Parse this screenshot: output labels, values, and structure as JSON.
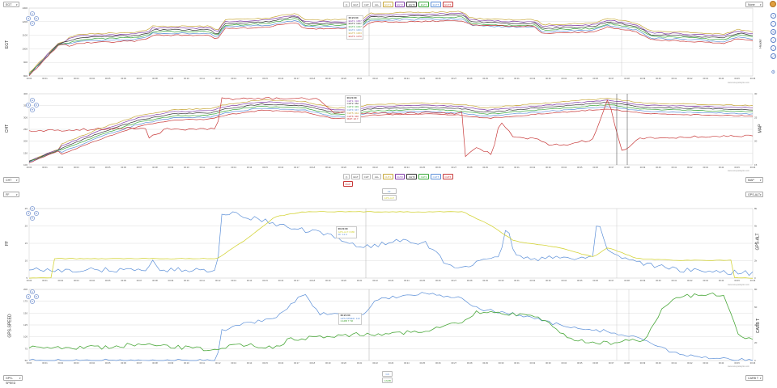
{
  "selectors": {
    "panel1_left": "EGT",
    "panel1_right": "None",
    "panel2_left": "CHT",
    "panel2_right": "MAP",
    "panel3_left": "FF",
    "panel3_right": "GPS-ALT",
    "panel4_left": "GPS-SPEED",
    "panel4_right": "CARB T"
  },
  "top_toggles": [
    "◎",
    "EGT",
    "CHT",
    "ALL",
    "EGT1",
    "EGT2",
    "EGT3",
    "EGT4",
    "EGT5",
    "EGT6"
  ],
  "mid_toggles": [
    "◎",
    "EGT",
    "CHT",
    "ALL",
    "CHT1",
    "CHT2",
    "CHT3",
    "CHT4",
    "CHT5",
    "CHT6"
  ],
  "mid_toggle_extra": "MAP",
  "ff_toggles": [
    "FF",
    "GPS-ALT"
  ],
  "bottom_toggles": [
    "GS",
    "CARB"
  ],
  "axis_labels": {
    "egt": "EGT",
    "egt_right": "Header",
    "cht": "CHT",
    "map": "MAP",
    "ff": "FF",
    "alt": "GPS-ALT",
    "gps": "GPS-SPEED",
    "carb": "CARB T"
  },
  "credit": "www.savvyanalysis.com",
  "colors": {
    "c1": "#c8a83a",
    "c2": "#7f3aa8",
    "c3": "#333333",
    "c4": "#3aa83a",
    "c5": "#5b8fd8",
    "c6": "#c83a3a",
    "ff": "#5b8fd8",
    "alt": "#d4d43a",
    "gs": "#5b8fd8",
    "carb": "#4aa83a",
    "map": "#c83a3a"
  },
  "x_ticks": [
    "00:00",
    "00:01",
    "00:02",
    "00:03",
    "00:04",
    "00:05",
    "00:06",
    "00:07",
    "00:08",
    "00:09",
    "00:10",
    "00:11",
    "00:12",
    "00:13",
    "00:14",
    "00:15",
    "00:16",
    "00:17",
    "00:18",
    "00:19",
    "00:20",
    "00:21",
    "00:22",
    "00:23",
    "00:24",
    "00:25",
    "00:26",
    "00:27",
    "00:28",
    "00:29",
    "00:30",
    "00:31",
    "00:32",
    "00:33",
    "00:34",
    "00:35",
    "00:36",
    "00:37",
    "00:38",
    "00:39",
    "00:40",
    "00:41",
    "00:42",
    "00:43",
    "00:44",
    "00:45",
    "00:46"
  ],
  "tooltips": {
    "egt": {
      "time": "00:21:00",
      "rows": [
        "EGT1: 1357",
        "EGT2: 1327",
        "EGT3: 1347",
        "EGT4: 1401",
        "EGT5: 1363",
        "EGT6: 1370"
      ]
    },
    "cht": {
      "time": "00:21:00",
      "rows": [
        "CHT1: 334",
        "CHT2: 352",
        "CHT3: 349",
        "CHT4: 347",
        "CHT5: 344",
        "CHT6: 340",
        "MAP: 22.7"
      ]
    },
    "ff": {
      "time": "00:21:00",
      "rows": [
        "GPS-ALT: 6380",
        "FF: 12.4"
      ]
    },
    "gs": {
      "time": "00:21:00",
      "rows": [
        "GPS-SPEED: 110",
        "CARB T: 56"
      ]
    }
  },
  "panels": [
    {
      "id": "egt",
      "y_left": [
        "1300",
        "1200",
        "1100",
        "1000",
        "900",
        "800"
      ],
      "y_right": []
    },
    {
      "id": "cht",
      "y_left": [
        "400",
        "350",
        "300",
        "250",
        "200",
        "150",
        "100"
      ],
      "y_right": [
        "30",
        "25",
        "20",
        "15"
      ]
    },
    {
      "id": "ff",
      "y_left": [
        "25",
        "20",
        "15",
        "10",
        "5"
      ],
      "y_right": [
        "8k",
        "6k",
        "4k",
        "2k",
        "0"
      ]
    },
    {
      "id": "gs",
      "y_left": [
        "200",
        "175",
        "150",
        "125",
        "100",
        "75",
        "50"
      ],
      "y_right": [
        "80",
        "60",
        "40",
        "20",
        "0"
      ]
    }
  ]
}
